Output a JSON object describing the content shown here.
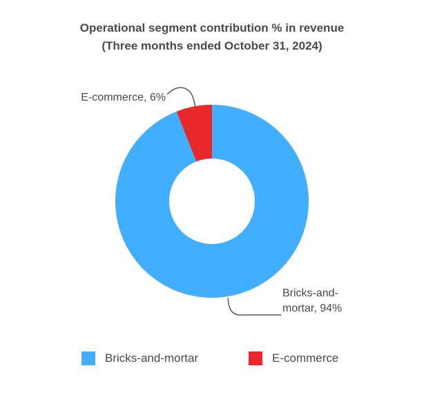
{
  "chart_data": {
    "type": "pie",
    "variant": "donut",
    "title": "Operational segment contribution % in revenue",
    "subtitle": "(Three months ended October 31, 2024)",
    "unit": "%",
    "slices": [
      {
        "name": "E-commerce",
        "value": 6,
        "color": "#e8282b",
        "label_lines": [
          "E-commerce, 6%"
        ]
      },
      {
        "name": "Bricks-and-mortar",
        "value": 94,
        "color": "#42aeff",
        "label_lines": [
          "Bricks-and-",
          "mortar, 94%"
        ]
      }
    ],
    "legend": {
      "placement": "bottom",
      "entries": [
        "Bricks-and-mortar",
        "E-commerce"
      ]
    }
  }
}
